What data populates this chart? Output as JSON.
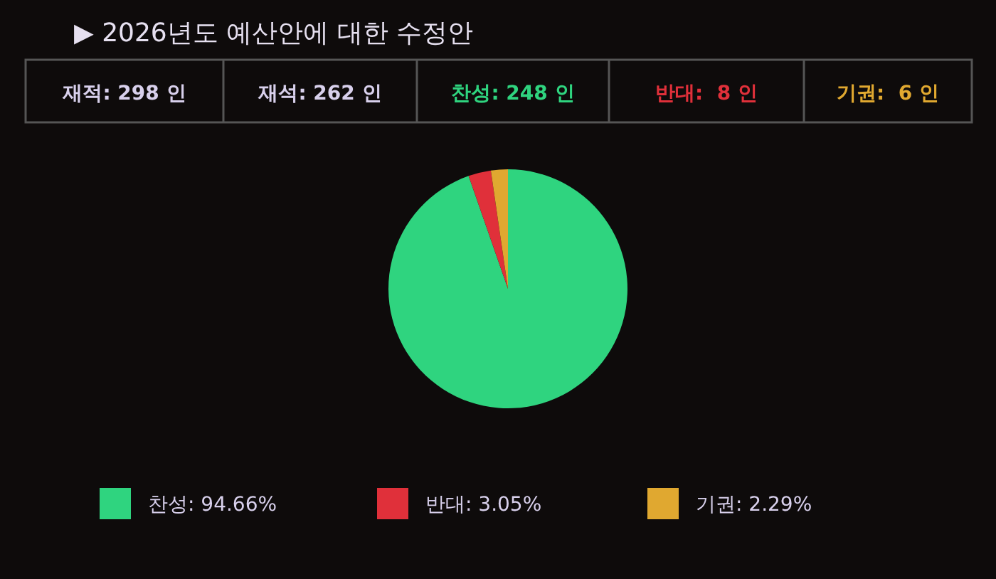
{
  "chart_data": {
    "type": "pie",
    "title": "▶ 2026년도 예산안에 대한 수정안",
    "annotations": [
      "재적: 298 인",
      "재석: 262 인",
      "찬성: 248 인",
      "반대:  8 인",
      "기권:  6 인"
    ],
    "categories": [
      "찬성",
      "반대",
      "기권"
    ],
    "values": [
      94.66,
      3.05,
      2.29
    ],
    "value_labels": [
      "94.66%",
      "3.05%",
      "2.29%"
    ],
    "colors": [
      "#2fd47f",
      "#e0303a",
      "#e0a830"
    ],
    "legend": "bottom"
  }
}
